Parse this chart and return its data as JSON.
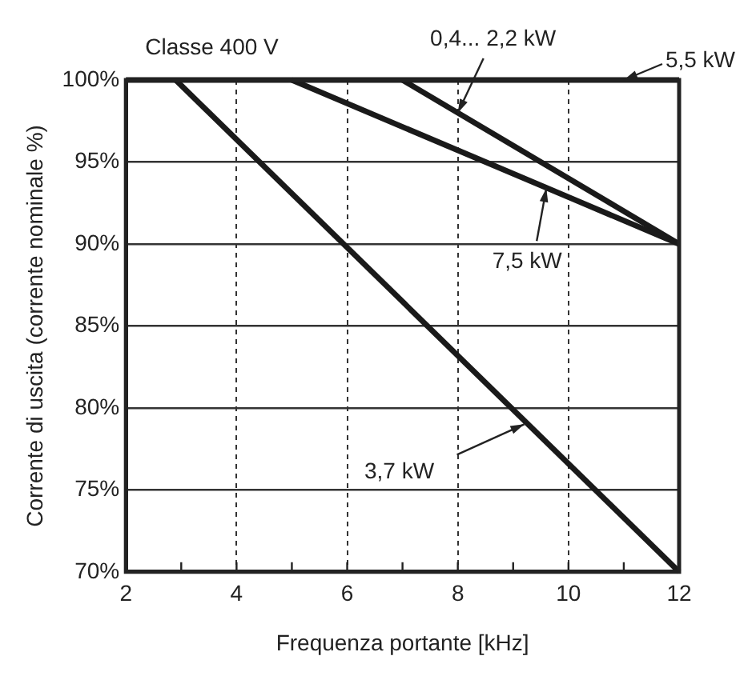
{
  "chart_data": {
    "type": "line",
    "xlabel": "Frequenza portante [kHz]",
    "ylabel": "Corrente di uscita (corrente nominale %)",
    "xlim": [
      2,
      12
    ],
    "ylim": [
      70,
      100
    ],
    "xticks": [
      2,
      {
        "value": 3,
        "label": null
      },
      4,
      {
        "value": 5,
        "label": null
      },
      6,
      {
        "value": 7,
        "label": null
      },
      8,
      {
        "value": 9,
        "label": null
      },
      10,
      {
        "value": 11,
        "label": null
      },
      12
    ],
    "yticks": [
      {
        "value": 70,
        "label": "70%"
      },
      {
        "value": 75,
        "label": "75%"
      },
      {
        "value": 80,
        "label": "80%"
      },
      {
        "value": 85,
        "label": "85%"
      },
      {
        "value": 90,
        "label": "90%"
      },
      {
        "value": 95,
        "label": "95%"
      },
      {
        "value": 100,
        "label": "100%"
      }
    ],
    "grid": true,
    "marker": "none",
    "line_style": "solid",
    "legend": false,
    "series": [
      {
        "color": "#1a1a1a",
        "x": [
          2,
          12
        ],
        "values": [
          100,
          100
        ]
      },
      {
        "color": "#1a1a1a",
        "x": [
          2.9,
          12
        ],
        "values": [
          100,
          70
        ]
      },
      {
        "color": "#1a1a1a",
        "x": [
          5,
          12
        ],
        "values": [
          100,
          90
        ]
      },
      {
        "color": "#1a1a1a",
        "x": [
          7,
          12
        ],
        "values": [
          100,
          90
        ]
      }
    ],
    "annotations": [
      "Classe 400 V",
      {
        "text": "0,4... 2,2 kW",
        "x": 8,
        "y": 98
      },
      {
        "text": "5,5 kW",
        "x": 11,
        "y": 100
      },
      {
        "text": "7,5 kW",
        "x": 9.6,
        "y": 93.4
      },
      {
        "text": "3,7 kW",
        "x": 9.2,
        "y": 79
      }
    ]
  }
}
